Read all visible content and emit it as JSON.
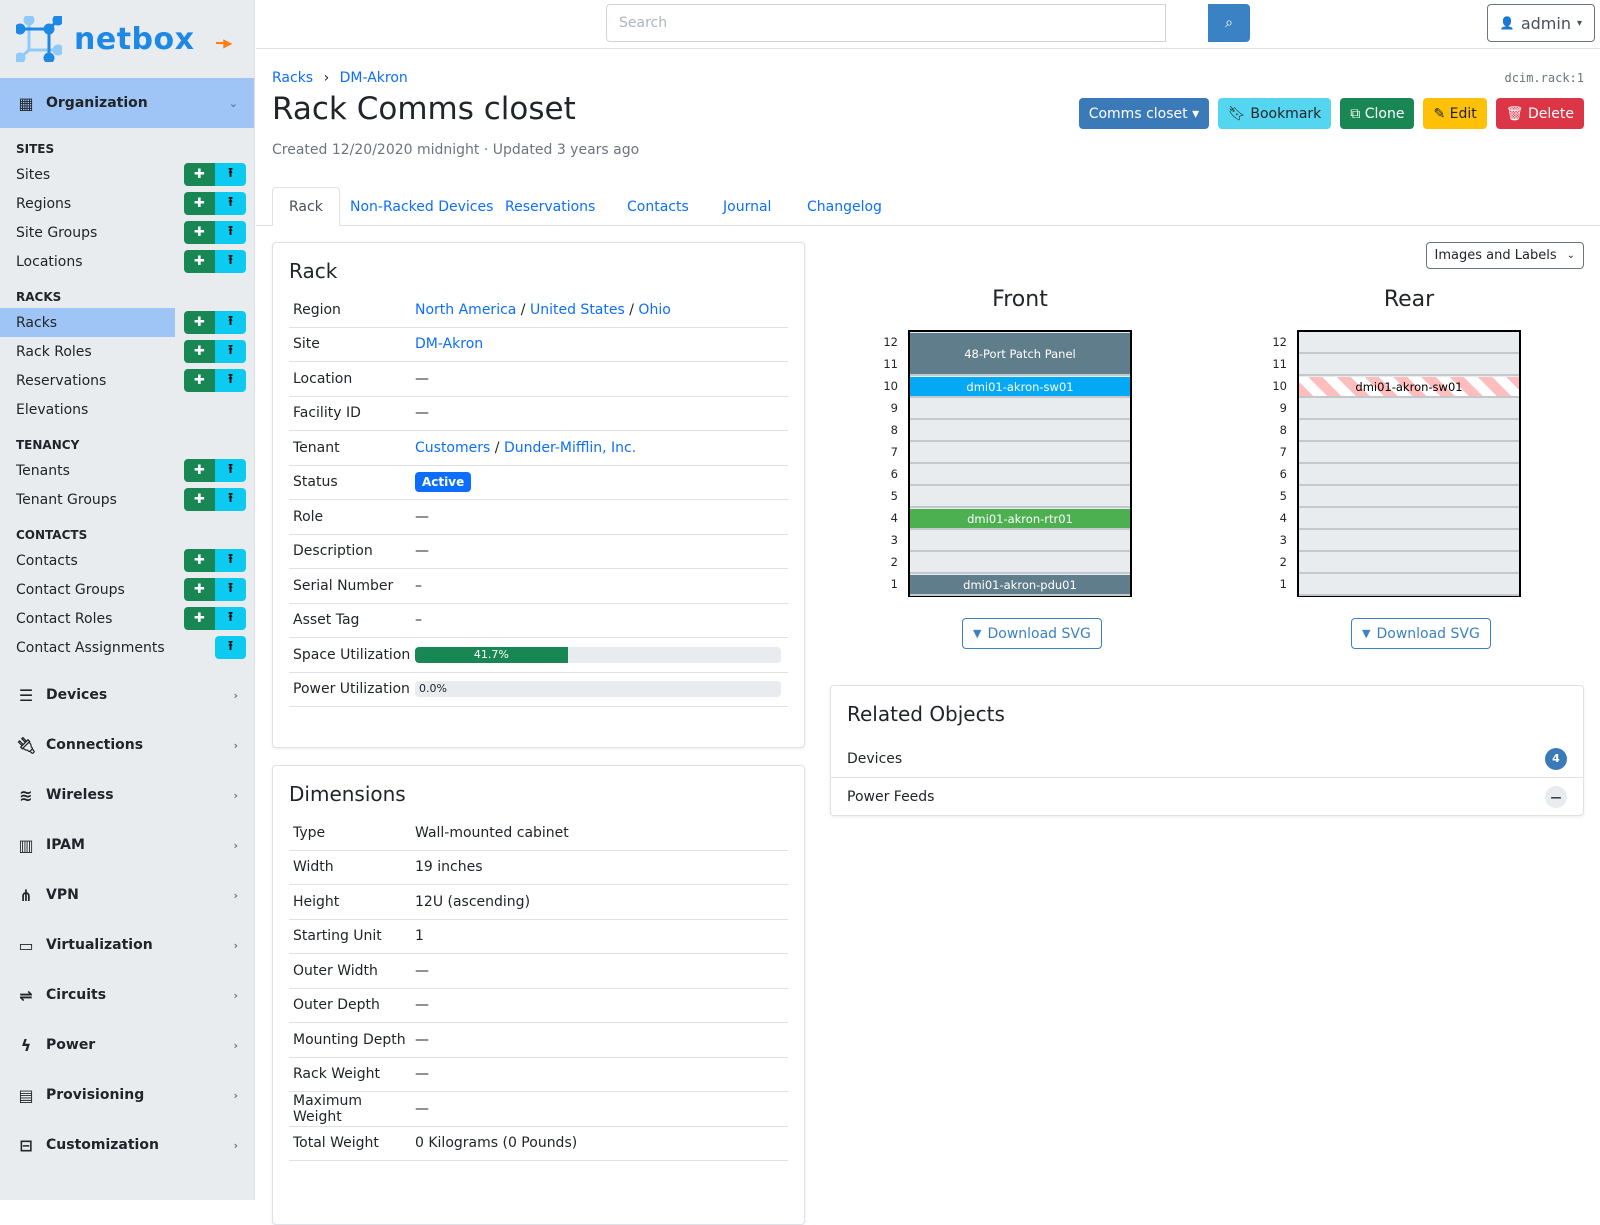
{
  "brand": {
    "name": "netbox"
  },
  "sidebar": {
    "organization": "Organization",
    "groups": [
      {
        "title": "Sites",
        "items": [
          {
            "label": "Sites",
            "add": true
          },
          {
            "label": "Regions",
            "add": true
          },
          {
            "label": "Site Groups",
            "add": true
          },
          {
            "label": "Locations",
            "add": true
          }
        ]
      },
      {
        "title": "Racks",
        "items": [
          {
            "label": "Racks",
            "add": true,
            "active": true
          },
          {
            "label": "Rack Roles",
            "add": true
          },
          {
            "label": "Reservations",
            "add": true
          },
          {
            "label": "Elevations"
          }
        ]
      },
      {
        "title": "Tenancy",
        "items": [
          {
            "label": "Tenants",
            "add": true
          },
          {
            "label": "Tenant Groups",
            "add": true
          }
        ]
      },
      {
        "title": "Contacts",
        "items": [
          {
            "label": "Contacts",
            "add": true
          },
          {
            "label": "Contact Groups",
            "add": true
          },
          {
            "label": "Contact Roles",
            "add": true
          },
          {
            "label": "Contact Assignments",
            "import_only": true
          }
        ]
      }
    ],
    "menus": [
      {
        "label": "Devices",
        "icon": "server-icon"
      },
      {
        "label": "Connections",
        "icon": "plug-icon"
      },
      {
        "label": "Wireless",
        "icon": "wifi-icon"
      },
      {
        "label": "IPAM",
        "icon": "ipam-icon"
      },
      {
        "label": "VPN",
        "icon": "vpn-icon"
      },
      {
        "label": "Virtualization",
        "icon": "monitor-icon"
      },
      {
        "label": "Circuits",
        "icon": "circuit-icon"
      },
      {
        "label": "Power",
        "icon": "power-icon"
      },
      {
        "label": "Provisioning",
        "icon": "file-icon"
      },
      {
        "label": "Customization",
        "icon": "toolbox-icon"
      }
    ]
  },
  "topbar": {
    "search_placeholder": "Search",
    "user": "admin"
  },
  "header": {
    "breadcrumb": [
      "Racks",
      "DM-Akron"
    ],
    "object_id": "dcim.rack:1",
    "title": "Rack Comms closet",
    "meta": "Created 12/20/2020 midnight · Updated 3 years ago",
    "actions": {
      "nav": "Comms closet",
      "bookmark": "Bookmark",
      "clone": "Clone",
      "edit": "Edit",
      "delete": "Delete"
    }
  },
  "tabs": [
    "Rack",
    "Non-Racked Devices",
    "Reservations",
    "Contacts",
    "Journal",
    "Changelog"
  ],
  "rack_card": {
    "title": "Rack",
    "region": [
      "North America",
      "United States",
      "Ohio"
    ],
    "site": "DM-Akron",
    "tenant": [
      "Customers",
      "Dunder-Mifflin, Inc."
    ],
    "status": "Active",
    "rows": [
      {
        "k": "Region"
      },
      {
        "k": "Site"
      },
      {
        "k": "Location",
        "v": "—"
      },
      {
        "k": "Facility ID",
        "v": "—"
      },
      {
        "k": "Tenant"
      },
      {
        "k": "Status"
      },
      {
        "k": "Role",
        "v": "—"
      },
      {
        "k": "Description",
        "v": "—"
      },
      {
        "k": "Serial Number",
        "v": "–"
      },
      {
        "k": "Asset Tag",
        "v": "–"
      },
      {
        "k": "Space Utilization"
      },
      {
        "k": "Power Utilization"
      }
    ],
    "space_utilization": {
      "label": "41.7%",
      "percent": 41.7
    },
    "power_utilization": {
      "label": "0.0%",
      "percent": 0
    }
  },
  "dimensions": {
    "title": "Dimensions",
    "rows": [
      {
        "k": "Type",
        "v": "Wall-mounted cabinet"
      },
      {
        "k": "Width",
        "v": "19 inches"
      },
      {
        "k": "Height",
        "v": "12U (ascending)"
      },
      {
        "k": "Starting Unit",
        "v": "1"
      },
      {
        "k": "Outer Width",
        "v": "—"
      },
      {
        "k": "Outer Depth",
        "v": "—"
      },
      {
        "k": "Mounting Depth",
        "v": "—"
      },
      {
        "k": "Rack Weight",
        "v": "—"
      },
      {
        "k": "Maximum Weight",
        "v": "—"
      },
      {
        "k": "Total Weight",
        "v": "0 Kilograms (0 Pounds)"
      }
    ]
  },
  "elevation": {
    "view_select": "Images and Labels",
    "units": 12,
    "download": "Download SVG",
    "front": {
      "title": "Front",
      "devices": [
        {
          "name": "48-Port Patch Panel",
          "u": 11,
          "height": 2,
          "color": "#607d8b"
        },
        {
          "name": "dmi01-akron-sw01",
          "u": 10,
          "height": 1,
          "color": "#03a9f4"
        },
        {
          "name": "dmi01-akron-rtr01",
          "u": 4,
          "height": 1,
          "color": "#4caf50"
        },
        {
          "name": "dmi01-akron-pdu01",
          "u": 1,
          "height": 1,
          "color": "#607d8b"
        }
      ]
    },
    "rear": {
      "title": "Rear",
      "devices": [
        {
          "name": "dmi01-akron-sw01",
          "u": 10,
          "height": 1,
          "occupied_from_front": true
        }
      ]
    }
  },
  "related": {
    "title": "Related Objects",
    "rows": [
      {
        "label": "Devices",
        "count": "4"
      },
      {
        "label": "Power Feeds",
        "count": "—"
      }
    ]
  }
}
